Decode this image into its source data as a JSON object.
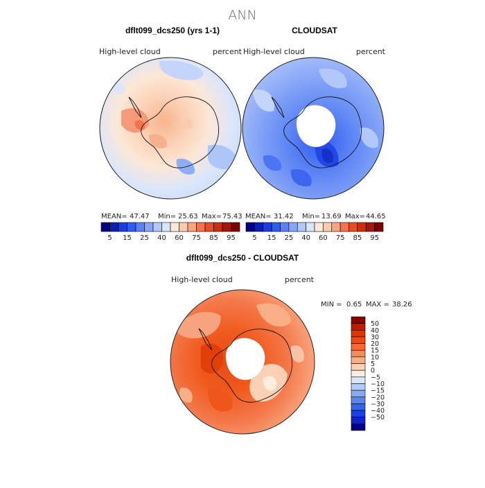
{
  "page": {
    "title": "ANN"
  },
  "panels": [
    {
      "id": "model",
      "title": "dflt099_dcs250 (yrs 1-1)",
      "left_label": "High-level cloud",
      "right_label": "percent",
      "stats": {
        "mean_label": "MEAN=",
        "mean": "47.47",
        "min_label": "Min=",
        "min": "25.63",
        "max_label": "Max=",
        "max": "75.43"
      },
      "colorbar": {
        "ticks": [
          "5",
          "15",
          "25",
          "40",
          "60",
          "75",
          "85",
          "95"
        ],
        "colors": [
          "#000080",
          "#0d1fb3",
          "#1a3ee0",
          "#2e5cf0",
          "#5a82f5",
          "#87a6f7",
          "#b3c8f9",
          "#dbe6fb",
          "#fde7d6",
          "#fbcbb0",
          "#f7a57f",
          "#f1744d",
          "#e84c26",
          "#cc2f0d",
          "#a31808",
          "#7a0000"
        ]
      },
      "shading": "mixed"
    },
    {
      "id": "obs",
      "title": "CLOUDSAT",
      "left_label": "High-level cloud",
      "right_label": "percent",
      "stats": {
        "mean_label": "MEAN=",
        "mean": "31.42",
        "min_label": "Min=",
        "min": "13.69",
        "max_label": "Max=",
        "max": "44.65"
      },
      "colorbar": {
        "ticks": [
          "5",
          "15",
          "25",
          "40",
          "60",
          "75",
          "85",
          "95"
        ],
        "colors": [
          "#000080",
          "#0d1fb3",
          "#1a3ee0",
          "#2e5cf0",
          "#5a82f5",
          "#87a6f7",
          "#b3c8f9",
          "#dbe6fb",
          "#fde7d6",
          "#fbcbb0",
          "#f7a57f",
          "#f1744d",
          "#e84c26",
          "#cc2f0d",
          "#a31808",
          "#7a0000"
        ]
      },
      "shading": "blue"
    },
    {
      "id": "diff",
      "title": "dflt099_dcs250 - CLOUDSAT",
      "left_label": "High-level cloud",
      "right_label": "percent",
      "stats": {
        "min_label": "MIN =",
        "min": "0.65",
        "max_label": "MAX =",
        "max": "38.26"
      },
      "colorbar": {
        "ticks": [
          "50",
          "40",
          "30",
          "20",
          "15",
          "10",
          "5",
          "0",
          "−5",
          "−10",
          "−15",
          "−20",
          "−30",
          "−40",
          "−50"
        ],
        "colors": [
          "#8b0000",
          "#c11a00",
          "#e13400",
          "#f04a0a",
          "#f46a30",
          "#f68c5a",
          "#f9ae86",
          "#fbd0b5",
          "#fdecdf",
          "#d8e6fb",
          "#b0cbf7",
          "#87aaf3",
          "#5c86ee",
          "#3563ea",
          "#1c3ee6",
          "#0d24c8",
          "#000080"
        ]
      },
      "shading": "red"
    }
  ],
  "chart_data": {
    "type": "heatmap",
    "title": "ANN",
    "subplots": [
      {
        "title": "dflt099_dcs250 (yrs 1-1)",
        "variable": "High-level cloud",
        "units": "percent",
        "mean": 47.47,
        "min": 25.63,
        "max": 75.43,
        "levels": [
          5,
          15,
          25,
          40,
          60,
          75,
          85,
          95
        ]
      },
      {
        "title": "CLOUDSAT",
        "variable": "High-level cloud",
        "units": "percent",
        "mean": 31.42,
        "min": 13.69,
        "max": 44.65,
        "levels": [
          5,
          15,
          25,
          40,
          60,
          75,
          85,
          95
        ]
      },
      {
        "title": "dflt099_dcs250 - CLOUDSAT",
        "variable": "High-level cloud",
        "units": "percent",
        "min": 0.65,
        "max": 38.26,
        "levels": [
          -50,
          -40,
          -30,
          -20,
          -15,
          -10,
          -5,
          0,
          5,
          10,
          15,
          20,
          30,
          40,
          50
        ]
      }
    ]
  }
}
